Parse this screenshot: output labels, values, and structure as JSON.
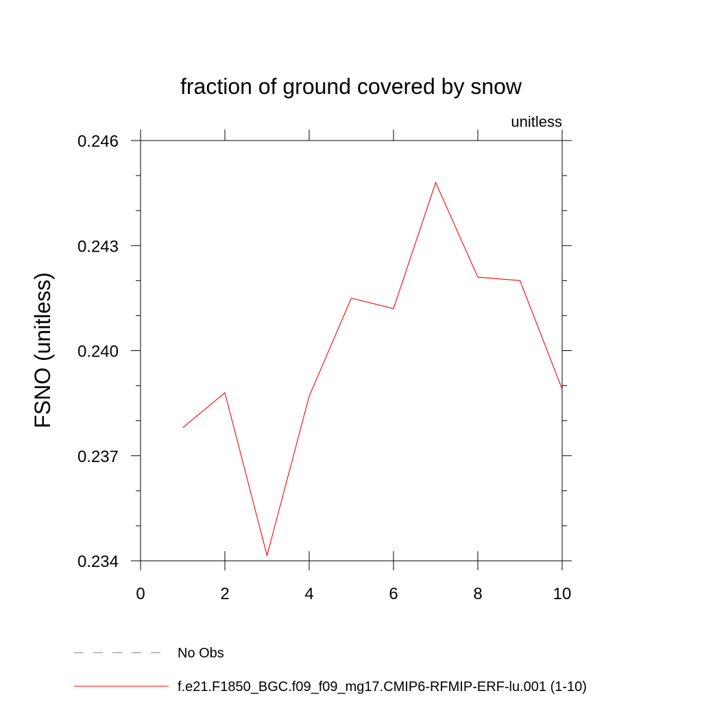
{
  "chart_data": {
    "type": "line",
    "title": "fraction of ground covered by snow",
    "units_label": "unitless",
    "xlabel": "",
    "ylabel": "FSNO  (unitless)",
    "xlim": [
      0,
      10
    ],
    "ylim": [
      0.234,
      0.246
    ],
    "x_ticks": [
      0,
      2,
      4,
      6,
      8,
      10
    ],
    "x_tick_labels": [
      "0",
      "2",
      "4",
      "6",
      "8",
      "10"
    ],
    "y_ticks": [
      0.234,
      0.237,
      0.24,
      0.243,
      0.246
    ],
    "y_tick_labels": [
      "0.234",
      "0.237",
      "0.240",
      "0.243",
      "0.246"
    ],
    "x_minor_step": 1,
    "y_minor_step": 0.001,
    "grid": false,
    "legend_position": "bottom",
    "series": [
      {
        "name": "No Obs",
        "color": "#7b6fb6",
        "dash": "dashed",
        "x": [],
        "values": []
      },
      {
        "name": "f.e21.F1850_BGC.f09_f09_mg17.CMIP6-RFMIP-ERF-lu.001 (1-10)",
        "color": "#ff0000",
        "dash": "solid",
        "x": [
          1,
          2,
          3,
          4,
          5,
          6,
          7,
          8,
          9,
          10
        ],
        "values": [
          0.2378,
          0.2388,
          0.23415,
          0.2387,
          0.2415,
          0.2412,
          0.2448,
          0.2421,
          0.242,
          0.2389
        ]
      }
    ]
  }
}
